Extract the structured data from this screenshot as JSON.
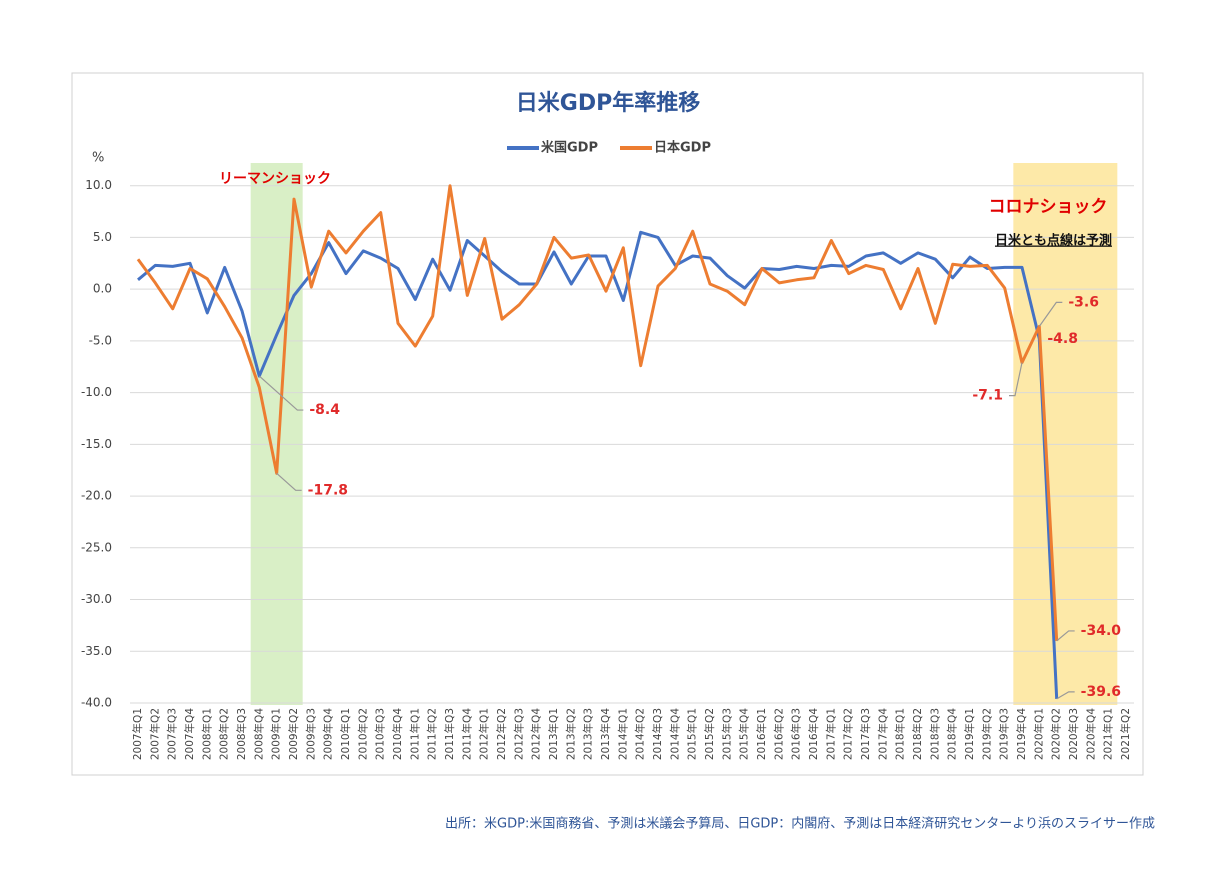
{
  "chart_data": {
    "type": "line",
    "title": "日米GDP年率推移",
    "y_unit": "%",
    "categories": [
      "2007年Q1",
      "2007年Q2",
      "2007年Q3",
      "2007年Q4",
      "2008年Q1",
      "2008年Q2",
      "2008年Q3",
      "2008年Q4",
      "2009年Q1",
      "2009年Q2",
      "2009年Q3",
      "2009年Q4",
      "2010年Q1",
      "2010年Q2",
      "2010年Q3",
      "2010年Q4",
      "2011年Q1",
      "2011年Q2",
      "2011年Q3",
      "2011年Q4",
      "2012年Q1",
      "2012年Q2",
      "2012年Q3",
      "2012年Q4",
      "2013年Q1",
      "2013年Q2",
      "2013年Q3",
      "2013年Q4",
      "2014年Q1",
      "2014年Q2",
      "2014年Q3",
      "2014年Q4",
      "2015年Q1",
      "2015年Q2",
      "2015年Q3",
      "2015年Q4",
      "2016年Q1",
      "2016年Q2",
      "2016年Q3",
      "2016年Q4",
      "2017年Q1",
      "2017年Q2",
      "2017年Q3",
      "2017年Q4",
      "2018年Q1",
      "2018年Q2",
      "2018年Q3",
      "2018年Q4",
      "2019年Q1",
      "2019年Q2",
      "2019年Q3",
      "2019年Q4",
      "2020年Q1",
      "2020年Q2",
      "2020年Q3",
      "2020年Q4",
      "2021年Q1",
      "2021年Q2"
    ],
    "series": [
      {
        "name": "米国GDP",
        "color": "#4472c4",
        "values": [
          0.9,
          2.3,
          2.2,
          2.5,
          -2.3,
          2.1,
          -2.1,
          -8.4,
          -4.4,
          -0.6,
          1.5,
          4.5,
          1.5,
          3.7,
          3.0,
          2.0,
          -1.0,
          2.9,
          -0.1,
          4.7,
          3.2,
          1.7,
          0.5,
          0.5,
          3.6,
          0.5,
          3.2,
          3.2,
          -1.1,
          5.5,
          5.0,
          2.3,
          3.2,
          3.0,
          1.3,
          0.1,
          2.0,
          1.9,
          2.2,
          2.0,
          2.3,
          2.2,
          3.2,
          3.5,
          2.5,
          3.5,
          2.9,
          1.1,
          3.1,
          2.0,
          2.1,
          2.1,
          -4.8,
          -39.6,
          null,
          null,
          null,
          null
        ],
        "value_labels": [
          null,
          null,
          null,
          null,
          null,
          null,
          null,
          "-8.4",
          null,
          null,
          null,
          null,
          null,
          null,
          null,
          null,
          null,
          null,
          null,
          null,
          null,
          null,
          null,
          null,
          null,
          null,
          null,
          null,
          null,
          null,
          null,
          null,
          null,
          null,
          null,
          null,
          null,
          null,
          null,
          null,
          null,
          null,
          null,
          null,
          null,
          null,
          null,
          null,
          null,
          null,
          null,
          null,
          "-4.8",
          "-39.6",
          null,
          null,
          null,
          null
        ]
      },
      {
        "name": "日本GDP",
        "color": "#ed7d31",
        "values": [
          2.9,
          0.6,
          -1.9,
          2.0,
          1.0,
          -1.7,
          -4.7,
          -9.5,
          -17.8,
          8.7,
          0.2,
          5.6,
          3.5,
          5.6,
          7.4,
          -3.3,
          -5.5,
          -2.6,
          10.0,
          -0.6,
          4.9,
          -2.9,
          -1.5,
          0.5,
          5.0,
          3.0,
          3.3,
          -0.2,
          4.0,
          -7.4,
          0.3,
          2.0,
          5.6,
          0.5,
          -0.2,
          -1.5,
          2.0,
          0.6,
          0.9,
          1.1,
          4.7,
          1.5,
          2.3,
          1.9,
          -1.9,
          2.0,
          -3.3,
          2.4,
          2.2,
          2.3,
          0.1,
          -7.1,
          -3.6,
          -34.0,
          null,
          null,
          null,
          null
        ],
        "value_labels": [
          null,
          null,
          null,
          null,
          null,
          null,
          null,
          null,
          "-17.8",
          null,
          null,
          null,
          null,
          null,
          null,
          null,
          null,
          null,
          null,
          null,
          null,
          null,
          null,
          null,
          null,
          null,
          null,
          null,
          null,
          null,
          null,
          null,
          null,
          null,
          null,
          null,
          null,
          null,
          null,
          null,
          null,
          null,
          null,
          null,
          null,
          null,
          null,
          null,
          null,
          null,
          null,
          "-7.1",
          "-3.6",
          "-34.0",
          null,
          null,
          null,
          null
        ]
      }
    ],
    "ylim": [
      -40,
      12
    ],
    "yticks": [
      {
        "value": -40,
        "label": "-40.0"
      },
      {
        "value": -35,
        "label": "-35.0"
      },
      {
        "value": -30,
        "label": "-30.0"
      },
      {
        "value": -25,
        "label": "-25.0"
      },
      {
        "value": -20,
        "label": "-20.0"
      },
      {
        "value": -15,
        "label": "-15.0"
      },
      {
        "value": -10,
        "label": "-10.0"
      },
      {
        "value": -5,
        "label": "-5.0"
      },
      {
        "value": 0,
        "label": "0.0"
      },
      {
        "value": 5,
        "label": "5.0"
      },
      {
        "value": 10,
        "label": "10.0"
      }
    ],
    "grid": true,
    "legend": "top",
    "highlights": [
      {
        "label": "リーマンショック",
        "from": "2008年Q4",
        "to": "2009年Q2",
        "color": "#d9efc6"
      },
      {
        "label": "コロナショック",
        "from": "2019年Q4",
        "to": "2021年Q1",
        "color": "#fde9a8"
      }
    ],
    "note": "日米とも点線は予測",
    "source": "出所：米GDP:米国商務省、予測は米議会予算局、日GDP：内閣府、予測は日本経済研究センターより浜のスライサー作成"
  }
}
